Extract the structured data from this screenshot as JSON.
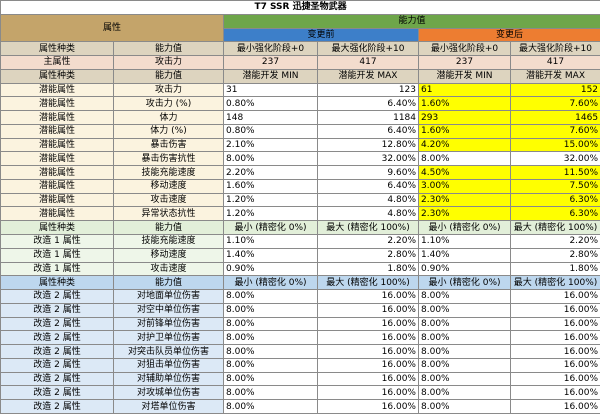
{
  "title": "T7 SSR 迅捷圣物武器",
  "header": {
    "property": "属性",
    "capability": "能力值",
    "before": "变更前",
    "after": "变更后"
  },
  "main_header": {
    "type": "属性种类",
    "value": "能力值",
    "min_stage": "最小强化阶段+0",
    "max_stage": "最大强化阶段+10"
  },
  "main_row": {
    "type": "主属性",
    "value": "攻击力",
    "before_min": "237",
    "before_max": "417",
    "after_min": "237",
    "after_max": "417"
  },
  "potential_header": {
    "type": "属性种类",
    "value": "能力值",
    "min": "潜能开发 MIN",
    "max": "潜能开发 MAX"
  },
  "potential_rows": [
    {
      "type": "潜能属性",
      "value": "攻击力",
      "bmin": "31",
      "bmax": "123",
      "amin": "61",
      "amax": "152"
    },
    {
      "type": "潜能属性",
      "value": "攻击力 (%)",
      "bmin": "0.80%",
      "bmax": "6.40%",
      "amin": "1.60%",
      "amax": "7.60%"
    },
    {
      "type": "潜能属性",
      "value": "体力",
      "bmin": "148",
      "bmax": "1184",
      "amin": "293",
      "amax": "1465"
    },
    {
      "type": "潜能属性",
      "value": "体力 (%)",
      "bmin": "0.80%",
      "bmax": "6.40%",
      "amin": "1.60%",
      "amax": "7.60%"
    },
    {
      "type": "潜能属性",
      "value": "暴击伤害",
      "bmin": "2.10%",
      "bmax": "12.80%",
      "amin": "4.20%",
      "amax": "15.00%"
    },
    {
      "type": "潜能属性",
      "value": "暴击伤害抗性",
      "bmin": "8.00%",
      "bmax": "32.00%",
      "amin": "8.00%",
      "amax": "32.00%"
    },
    {
      "type": "潜能属性",
      "value": "技能充能速度",
      "bmin": "2.20%",
      "bmax": "9.60%",
      "amin": "4.50%",
      "amax": "11.50%"
    },
    {
      "type": "潜能属性",
      "value": "移动速度",
      "bmin": "1.60%",
      "bmax": "6.40%",
      "amin": "3.00%",
      "amax": "7.50%"
    },
    {
      "type": "潜能属性",
      "value": "攻击速度",
      "bmin": "1.20%",
      "bmax": "4.80%",
      "amin": "2.30%",
      "amax": "6.30%"
    },
    {
      "type": "潜能属性",
      "value": "异常状态抗性",
      "bmin": "1.20%",
      "bmax": "4.80%",
      "amin": "2.30%",
      "amax": "6.30%"
    }
  ],
  "mod1_header": {
    "type": "属性种类",
    "value": "能力值",
    "min": "最小 (精密化 0%)",
    "max": "最大 (精密化 100%)"
  },
  "mod1_rows": [
    {
      "type": "改造 1 属性",
      "value": "技能充能速度",
      "bmin": "1.10%",
      "bmax": "2.20%",
      "amin": "1.10%",
      "amax": "2.20%"
    },
    {
      "type": "改造 1 属性",
      "value": "移动速度",
      "bmin": "1.40%",
      "bmax": "2.80%",
      "amin": "1.40%",
      "amax": "2.80%"
    },
    {
      "type": "改造 1 属性",
      "value": "攻击速度",
      "bmin": "0.90%",
      "bmax": "1.80%",
      "amin": "0.90%",
      "amax": "1.80%"
    }
  ],
  "mod2_header": {
    "type": "属性种类",
    "value": "能力值",
    "min": "最小 (精密化 0%)",
    "max": "最大 (精密化 100%)"
  },
  "mod2_rows": [
    {
      "type": "改造 2 属性",
      "value": "对地面单位伤害",
      "bmin": "8.00%",
      "bmax": "16.00%",
      "amin": "8.00%",
      "amax": "16.00%"
    },
    {
      "type": "改造 2 属性",
      "value": "对空中单位伤害",
      "bmin": "8.00%",
      "bmax": "16.00%",
      "amin": "8.00%",
      "amax": "16.00%"
    },
    {
      "type": "改造 2 属性",
      "value": "对前锋单位伤害",
      "bmin": "8.00%",
      "bmax": "16.00%",
      "amin": "8.00%",
      "amax": "16.00%"
    },
    {
      "type": "改造 2 属性",
      "value": "对护卫单位伤害",
      "bmin": "8.00%",
      "bmax": "16.00%",
      "amin": "8.00%",
      "amax": "16.00%"
    },
    {
      "type": "改造 2 属性",
      "value": "对突击队员单位伤害",
      "bmin": "8.00%",
      "bmax": "16.00%",
      "amin": "8.00%",
      "amax": "16.00%"
    },
    {
      "type": "改造 2 属性",
      "value": "对狙击单位伤害",
      "bmin": "8.00%",
      "bmax": "16.00%",
      "amin": "8.00%",
      "amax": "16.00%"
    },
    {
      "type": "改造 2 属性",
      "value": "对辅助单位伤害",
      "bmin": "8.00%",
      "bmax": "16.00%",
      "amin": "8.00%",
      "amax": "16.00%"
    },
    {
      "type": "改造 2 属性",
      "value": "对攻城单位伤害",
      "bmin": "8.00%",
      "bmax": "16.00%",
      "amin": "8.00%",
      "amax": "16.00%"
    },
    {
      "type": "改造 2 属性",
      "value": "对塔单位伤害",
      "bmin": "8.00%",
      "bmax": "16.00%",
      "amin": "8.00%",
      "amax": "16.00%"
    }
  ],
  "colors": {
    "header_property": "#c4a46a",
    "header_capability": "#6ea64a",
    "header_before": "#3d7fc9",
    "header_after": "#ed7d31",
    "highlight_changed": "#ffff00",
    "mod1_band": "#e2efd9",
    "mod2_band": "#bdd7ee"
  }
}
